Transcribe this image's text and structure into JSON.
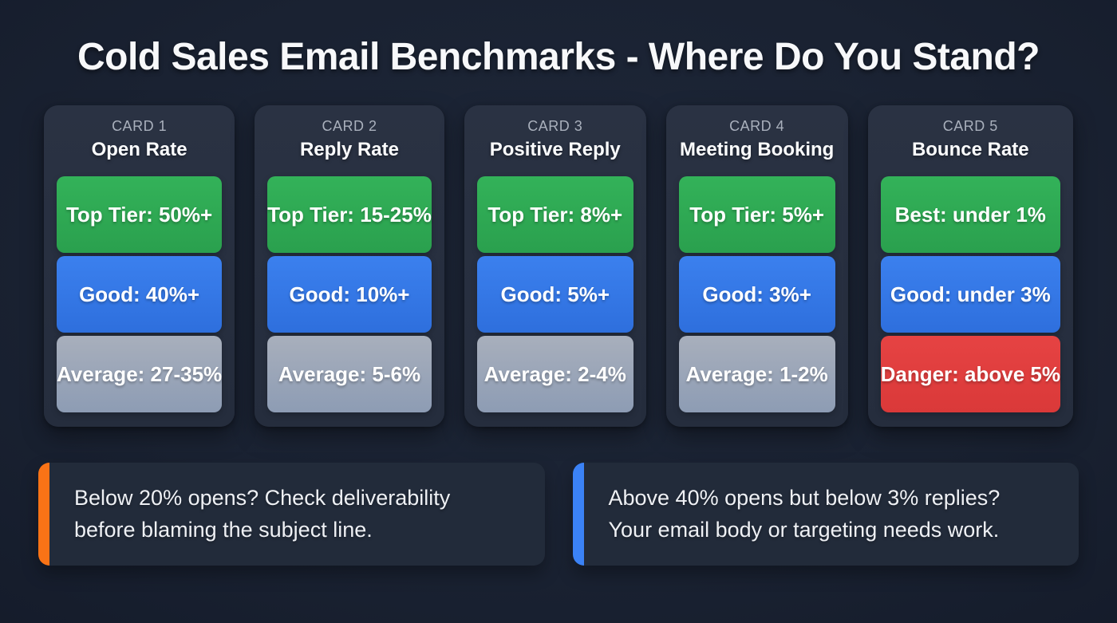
{
  "title": "Cold Sales Email Benchmarks - Where Do You Stand?",
  "cards": [
    {
      "label": "CARD 1",
      "title": "Open Rate",
      "tiers": [
        {
          "text": "Top Tier: 50%+",
          "color": "green"
        },
        {
          "text": "Good: 40%+",
          "color": "blue"
        },
        {
          "text": "Average: 27-35%",
          "color": "gray"
        }
      ]
    },
    {
      "label": "CARD 2",
      "title": "Reply Rate",
      "tiers": [
        {
          "text": "Top Tier: 15-25%",
          "color": "green"
        },
        {
          "text": "Good: 10%+",
          "color": "blue"
        },
        {
          "text": "Average: 5-6%",
          "color": "gray"
        }
      ]
    },
    {
      "label": "CARD 3",
      "title": "Positive Reply",
      "tiers": [
        {
          "text": "Top Tier: 8%+",
          "color": "green"
        },
        {
          "text": "Good: 5%+",
          "color": "blue"
        },
        {
          "text": "Average: 2-4%",
          "color": "gray"
        }
      ]
    },
    {
      "label": "CARD 4",
      "title": "Meeting Booking",
      "tiers": [
        {
          "text": "Top Tier: 5%+",
          "color": "green"
        },
        {
          "text": "Good: 3%+",
          "color": "blue"
        },
        {
          "text": "Average: 1-2%",
          "color": "gray"
        }
      ]
    },
    {
      "label": "CARD 5",
      "title": "Bounce Rate",
      "tiers": [
        {
          "text": "Best: under 1%",
          "color": "green"
        },
        {
          "text": "Good: under 3%",
          "color": "blue"
        },
        {
          "text": "Danger: above 5%",
          "color": "red"
        }
      ]
    }
  ],
  "callouts": [
    {
      "accent": "#F97316",
      "text": "Below 20% opens? Check deliverability before blaming the subject line."
    },
    {
      "accent": "#3B82F6",
      "text": "Above 40% opens but below 3% replies? Your email body or targeting needs work."
    }
  ],
  "colors": {
    "background": "#1A2232",
    "card_background": "#272F3F",
    "tier_green": "#2FAE55",
    "tier_blue": "#3379E8",
    "tier_gray": "#97A4B8",
    "tier_red": "#E23C3C",
    "accent_orange": "#F97316",
    "accent_blue": "#3B82F6",
    "title_text": "#F7F8FA",
    "card_label_text": "#A9B0BC"
  }
}
